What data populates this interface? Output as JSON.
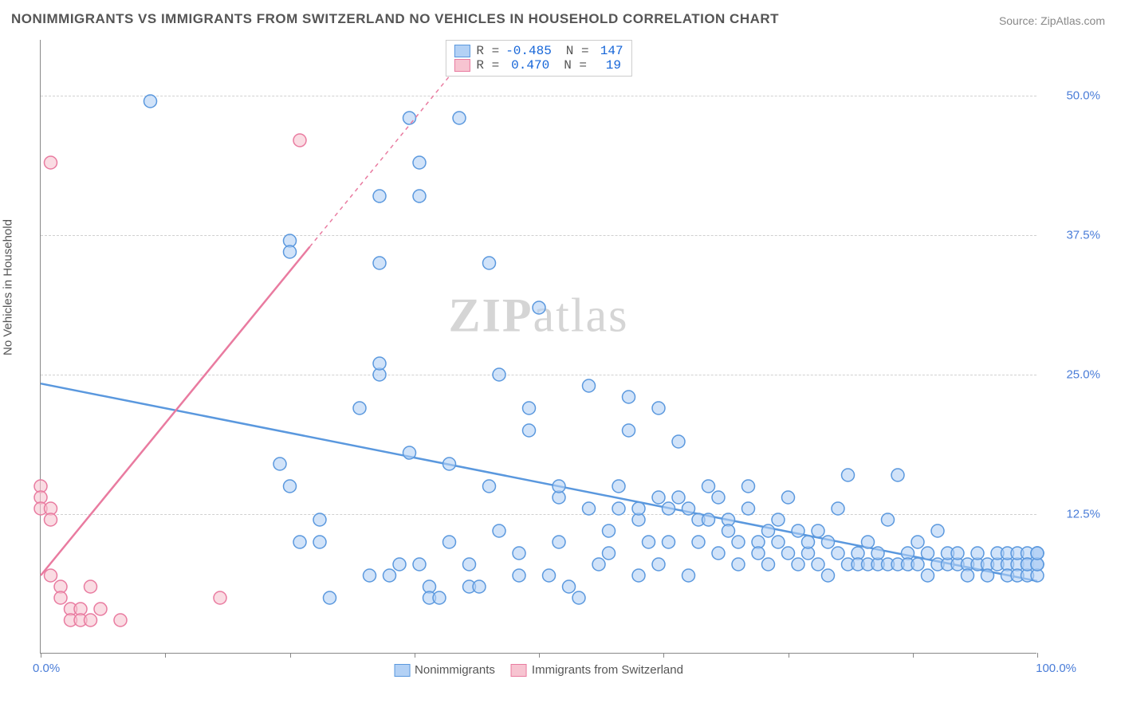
{
  "title": "NONIMMIGRANTS VS IMMIGRANTS FROM SWITZERLAND NO VEHICLES IN HOUSEHOLD CORRELATION CHART",
  "source": "Source: ZipAtlas.com",
  "watermark_prefix": "ZIP",
  "watermark_suffix": "atlas",
  "y_axis_label": "No Vehicles in Household",
  "chart": {
    "type": "scatter",
    "xlim": [
      0,
      100
    ],
    "ylim": [
      0,
      55
    ],
    "x_min_label": "0.0%",
    "x_max_label": "100.0%",
    "x_ticks": [
      0,
      12.5,
      25,
      37.5,
      50,
      62.5,
      75,
      87.5,
      100
    ],
    "y_gridlines": [
      {
        "v": 12.5,
        "label": "12.5%"
      },
      {
        "v": 25.0,
        "label": "25.0%"
      },
      {
        "v": 37.5,
        "label": "37.5%"
      },
      {
        "v": 50.0,
        "label": "50.0%"
      }
    ],
    "background_color": "#ffffff",
    "grid_color": "#d0d0d0",
    "marker_radius": 8,
    "marker_stroke_width": 1.5,
    "trend_line_width": 2.5,
    "series": [
      {
        "name": "Nonimmigrants",
        "fill": "#b3d1f5",
        "stroke": "#5a98de",
        "fill_opacity": 0.6,
        "R": "-0.485",
        "N": "147",
        "trend": {
          "x1": 0,
          "y1": 24.2,
          "x2": 100,
          "y2": 6.5,
          "dash_after_x": null
        },
        "points": [
          [
            11,
            49.5
          ],
          [
            25,
            37
          ],
          [
            25,
            36
          ],
          [
            28,
            12
          ],
          [
            28,
            10
          ],
          [
            26,
            10
          ],
          [
            24,
            17
          ],
          [
            25,
            15
          ],
          [
            29,
            5
          ],
          [
            34,
            25
          ],
          [
            34,
            26
          ],
          [
            32,
            22
          ],
          [
            34,
            35
          ],
          [
            37,
            48
          ],
          [
            38,
            44
          ],
          [
            38,
            41
          ],
          [
            34,
            41
          ],
          [
            33,
            7
          ],
          [
            35,
            7
          ],
          [
            36,
            8
          ],
          [
            38,
            8
          ],
          [
            39,
            6
          ],
          [
            37,
            18
          ],
          [
            39,
            5
          ],
          [
            40,
            5
          ],
          [
            41,
            17
          ],
          [
            41,
            10
          ],
          [
            42,
            48
          ],
          [
            45,
            35
          ],
          [
            45,
            15
          ],
          [
            43,
            8
          ],
          [
            43,
            6
          ],
          [
            44,
            6
          ],
          [
            46,
            25
          ],
          [
            48,
            7
          ],
          [
            48,
            9
          ],
          [
            49,
            20
          ],
          [
            49,
            22
          ],
          [
            50,
            31
          ],
          [
            51,
            7
          ],
          [
            52,
            14
          ],
          [
            53,
            6
          ],
          [
            52,
            15
          ],
          [
            54,
            5
          ],
          [
            55,
            24
          ],
          [
            56,
            8
          ],
          [
            57,
            11
          ],
          [
            57,
            9
          ],
          [
            58,
            15
          ],
          [
            58,
            13
          ],
          [
            59,
            23
          ],
          [
            59,
            20
          ],
          [
            60,
            7
          ],
          [
            60,
            12
          ],
          [
            61,
            10
          ],
          [
            62,
            14
          ],
          [
            62,
            22
          ],
          [
            63,
            10
          ],
          [
            63,
            13
          ],
          [
            64,
            14
          ],
          [
            64,
            19
          ],
          [
            65,
            7
          ],
          [
            65,
            13
          ],
          [
            66,
            12
          ],
          [
            66,
            10
          ],
          [
            67,
            12
          ],
          [
            67,
            15
          ],
          [
            68,
            14
          ],
          [
            68,
            9
          ],
          [
            69,
            12
          ],
          [
            69,
            11
          ],
          [
            70,
            10
          ],
          [
            70,
            8
          ],
          [
            71,
            15
          ],
          [
            71,
            13
          ],
          [
            72,
            10
          ],
          [
            72,
            9
          ],
          [
            73,
            11
          ],
          [
            73,
            8
          ],
          [
            74,
            12
          ],
          [
            74,
            10
          ],
          [
            75,
            9
          ],
          [
            75,
            14
          ],
          [
            76,
            8
          ],
          [
            76,
            11
          ],
          [
            77,
            9
          ],
          [
            77,
            10
          ],
          [
            78,
            8
          ],
          [
            78,
            11
          ],
          [
            79,
            10
          ],
          [
            79,
            7
          ],
          [
            80,
            9
          ],
          [
            80,
            13
          ],
          [
            81,
            16
          ],
          [
            81,
            8
          ],
          [
            82,
            9
          ],
          [
            82,
            8
          ],
          [
            83,
            10
          ],
          [
            83,
            8
          ],
          [
            84,
            8
          ],
          [
            84,
            9
          ],
          [
            85,
            8
          ],
          [
            85,
            12
          ],
          [
            86,
            16
          ],
          [
            86,
            8
          ],
          [
            87,
            9
          ],
          [
            87,
            8
          ],
          [
            88,
            10
          ],
          [
            88,
            8
          ],
          [
            89,
            7
          ],
          [
            89,
            9
          ],
          [
            90,
            8
          ],
          [
            90,
            11
          ],
          [
            91,
            8
          ],
          [
            91,
            9
          ],
          [
            92,
            8
          ],
          [
            92,
            9
          ],
          [
            93,
            8
          ],
          [
            93,
            7
          ],
          [
            94,
            8
          ],
          [
            94,
            9
          ],
          [
            95,
            8
          ],
          [
            95,
            7
          ],
          [
            96,
            8
          ],
          [
            96,
            9
          ],
          [
            97,
            8
          ],
          [
            97,
            9
          ],
          [
            97,
            7
          ],
          [
            98,
            8
          ],
          [
            98,
            9
          ],
          [
            98,
            7
          ],
          [
            99,
            8
          ],
          [
            99,
            9
          ],
          [
            99,
            7
          ],
          [
            99,
            8
          ],
          [
            100,
            8
          ],
          [
            100,
            9
          ],
          [
            100,
            8
          ],
          [
            100,
            7
          ],
          [
            100,
            9
          ],
          [
            100,
            8
          ],
          [
            100,
            9
          ],
          [
            60,
            13
          ],
          [
            62,
            8
          ],
          [
            55,
            13
          ],
          [
            52,
            10
          ],
          [
            46,
            11
          ]
        ]
      },
      {
        "name": "Immigrants from Switzerland",
        "fill": "#f7c4d1",
        "stroke": "#e97ba0",
        "fill_opacity": 0.6,
        "R": "0.470",
        "N": "19",
        "trend": {
          "x1": 0,
          "y1": 7,
          "x2": 44,
          "y2": 55,
          "dash_after_x": 27
        },
        "points": [
          [
            1,
            44
          ],
          [
            0,
            15
          ],
          [
            0,
            14
          ],
          [
            0,
            13
          ],
          [
            1,
            13
          ],
          [
            1,
            12
          ],
          [
            2,
            6
          ],
          [
            2,
            5
          ],
          [
            3,
            4
          ],
          [
            3,
            3
          ],
          [
            4,
            4
          ],
          [
            4,
            3
          ],
          [
            5,
            3
          ],
          [
            5,
            6
          ],
          [
            6,
            4
          ],
          [
            8,
            3
          ],
          [
            18,
            5
          ],
          [
            26,
            46
          ],
          [
            1,
            7
          ]
        ]
      }
    ]
  },
  "stats_label_R": "R =",
  "stats_label_N": "N =",
  "bottom_legend": [
    {
      "label": "Nonimmigrants",
      "fill": "#b3d1f5",
      "stroke": "#5a98de"
    },
    {
      "label": "Immigrants from Switzerland",
      "fill": "#f7c4d1",
      "stroke": "#e97ba0"
    }
  ]
}
